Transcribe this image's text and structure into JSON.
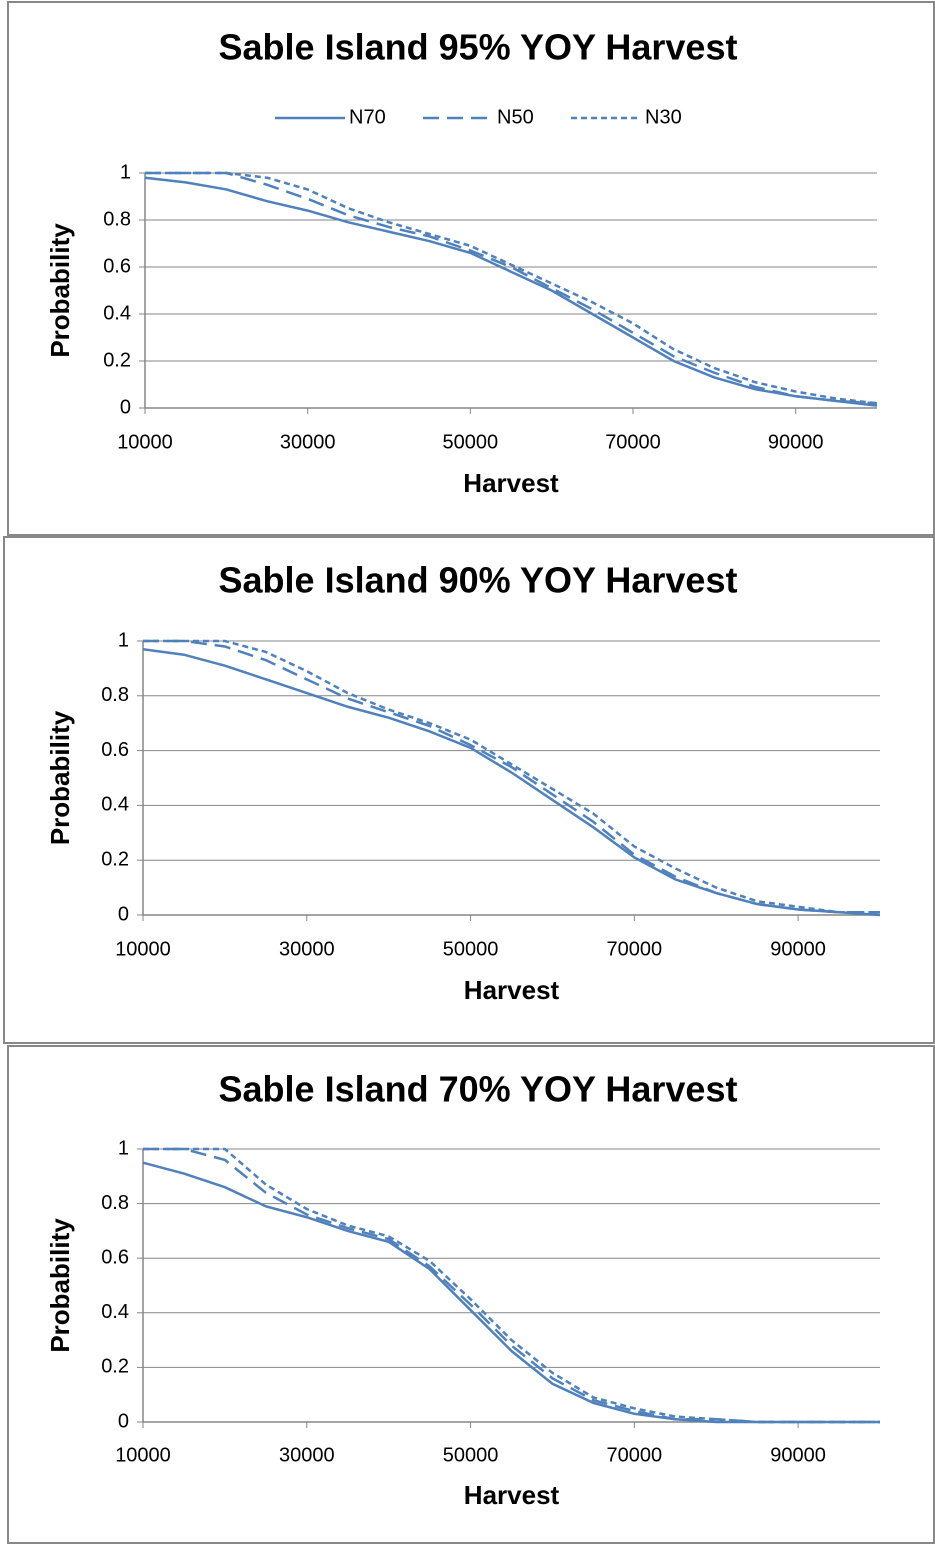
{
  "chart_data": [
    {
      "type": "line",
      "title": "Sable Island 95% YOY Harvest",
      "x_label": "Harvest",
      "y_label": "Probability",
      "legend": "top",
      "grid": true,
      "x": [
        10000,
        15000,
        20000,
        25000,
        30000,
        35000,
        40000,
        45000,
        50000,
        55000,
        60000,
        65000,
        70000,
        75000,
        80000,
        85000,
        90000,
        95000,
        100000
      ],
      "series": [
        {
          "name": "N70",
          "color": "#4f81bd",
          "dash": "solid",
          "values": [
            0.98,
            0.96,
            0.93,
            0.88,
            0.84,
            0.79,
            0.75,
            0.71,
            0.66,
            0.58,
            0.5,
            0.4,
            0.3,
            0.2,
            0.13,
            0.08,
            0.05,
            0.03,
            0.01
          ]
        },
        {
          "name": "N50",
          "color": "#4f81bd",
          "dash": "dash",
          "values": [
            1,
            1,
            1,
            0.95,
            0.89,
            0.82,
            0.77,
            0.73,
            0.67,
            0.6,
            0.51,
            0.42,
            0.32,
            0.22,
            0.15,
            0.09,
            0.05,
            0.03,
            0.02
          ]
        },
        {
          "name": "N30",
          "color": "#4f81bd",
          "dash": "dot",
          "values": [
            1,
            1,
            1,
            0.98,
            0.93,
            0.85,
            0.79,
            0.74,
            0.69,
            0.61,
            0.53,
            0.45,
            0.36,
            0.25,
            0.17,
            0.11,
            0.07,
            0.04,
            0.02
          ]
        }
      ],
      "xlim": [
        10000,
        100000
      ],
      "xticks": [
        10000,
        30000,
        50000,
        70000,
        90000
      ],
      "ylim": [
        0,
        1
      ],
      "yticks": [
        0,
        0.2,
        0.4,
        0.6,
        0.8,
        1
      ]
    },
    {
      "type": "line",
      "title": "Sable Island 90% YOY Harvest",
      "x_label": "Harvest",
      "y_label": "Probability",
      "grid": true,
      "x": [
        10000,
        15000,
        20000,
        25000,
        30000,
        35000,
        40000,
        45000,
        50000,
        55000,
        60000,
        65000,
        70000,
        75000,
        80000,
        85000,
        90000,
        95000,
        100000
      ],
      "series": [
        {
          "name": "N70",
          "color": "#4f81bd",
          "dash": "solid",
          "values": [
            0.97,
            0.95,
            0.91,
            0.86,
            0.81,
            0.76,
            0.72,
            0.67,
            0.61,
            0.52,
            0.42,
            0.32,
            0.21,
            0.13,
            0.08,
            0.04,
            0.02,
            0.01,
            0
          ]
        },
        {
          "name": "N50",
          "color": "#4f81bd",
          "dash": "dash",
          "values": [
            1,
            1,
            0.98,
            0.93,
            0.86,
            0.79,
            0.74,
            0.69,
            0.62,
            0.54,
            0.44,
            0.34,
            0.22,
            0.14,
            0.08,
            0.04,
            0.02,
            0.01,
            0.01
          ]
        },
        {
          "name": "N30",
          "color": "#4f81bd",
          "dash": "dot",
          "values": [
            1,
            1,
            1,
            0.96,
            0.89,
            0.81,
            0.75,
            0.7,
            0.64,
            0.55,
            0.46,
            0.37,
            0.25,
            0.17,
            0.1,
            0.05,
            0.03,
            0.01,
            0.01
          ]
        }
      ],
      "xlim": [
        10000,
        100000
      ],
      "xticks": [
        10000,
        30000,
        50000,
        70000,
        90000
      ],
      "ylim": [
        0,
        1
      ],
      "yticks": [
        0,
        0.2,
        0.4,
        0.6,
        0.8,
        1
      ]
    },
    {
      "type": "line",
      "title": "Sable Island 70% YOY Harvest",
      "x_label": "Harvest",
      "y_label": "Probability",
      "grid": true,
      "x": [
        10000,
        15000,
        20000,
        25000,
        30000,
        35000,
        40000,
        45000,
        50000,
        55000,
        60000,
        65000,
        70000,
        75000,
        80000,
        85000,
        90000,
        95000,
        100000
      ],
      "series": [
        {
          "name": "N70",
          "color": "#4f81bd",
          "dash": "solid",
          "values": [
            0.95,
            0.91,
            0.86,
            0.79,
            0.75,
            0.7,
            0.66,
            0.56,
            0.41,
            0.26,
            0.14,
            0.07,
            0.03,
            0.01,
            0,
            0,
            0,
            0,
            0
          ]
        },
        {
          "name": "N50",
          "color": "#4f81bd",
          "dash": "dash",
          "values": [
            1,
            1,
            0.96,
            0.84,
            0.76,
            0.71,
            0.67,
            0.57,
            0.43,
            0.28,
            0.16,
            0.08,
            0.04,
            0.01,
            0.01,
            0,
            0,
            0,
            0
          ]
        },
        {
          "name": "N30",
          "color": "#4f81bd",
          "dash": "dot",
          "values": [
            1,
            1,
            1,
            0.87,
            0.78,
            0.72,
            0.68,
            0.59,
            0.45,
            0.3,
            0.18,
            0.09,
            0.05,
            0.02,
            0.01,
            0,
            0,
            0,
            0
          ]
        }
      ],
      "xlim": [
        10000,
        100000
      ],
      "xticks": [
        10000,
        30000,
        50000,
        70000,
        90000
      ],
      "ylim": [
        0,
        1
      ],
      "yticks": [
        0,
        0.2,
        0.4,
        0.6,
        0.8,
        1
      ]
    }
  ]
}
